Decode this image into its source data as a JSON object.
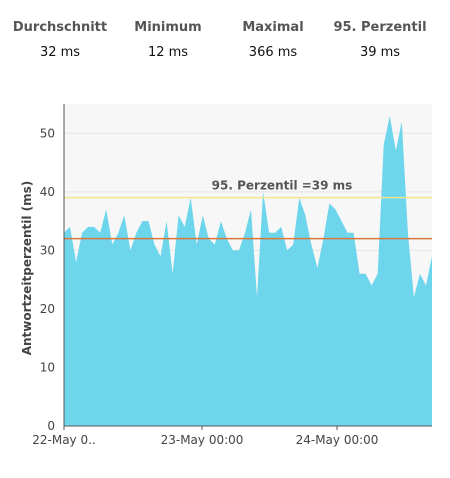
{
  "stats": [
    {
      "label": "Durchschnitt",
      "value": "32 ms"
    },
    {
      "label": "Minimum",
      "value": "12 ms"
    },
    {
      "label": "Maximal",
      "value": "366 ms"
    },
    {
      "label": "95. Perzentil",
      "value": "39 ms"
    }
  ],
  "chart_data": {
    "type": "area",
    "ylabel": "Antwortzeitperzentil (ms)",
    "ylim": [
      0,
      55
    ],
    "yticks": [
      0,
      10,
      20,
      30,
      40,
      50
    ],
    "xtick_labels": [
      "22-May 0..",
      "23-May 00:00",
      "24-May 00:00"
    ],
    "grid": true,
    "color": "#6dd5ec",
    "values": [
      33,
      34,
      28,
      33,
      34,
      34,
      33,
      37,
      31,
      33,
      36,
      30,
      33,
      35,
      35,
      31,
      29,
      35,
      26,
      36,
      34,
      39,
      31,
      36,
      32,
      31,
      35,
      32,
      30,
      30,
      33,
      37,
      22,
      40,
      33,
      33,
      34,
      30,
      31,
      39,
      36,
      31,
      27,
      32,
      38,
      37,
      35,
      33,
      33,
      26,
      26,
      24,
      26,
      48,
      53,
      47,
      52,
      33,
      22,
      26,
      24,
      29
    ],
    "reference_lines": [
      {
        "label": "95. Perzentil =39 ms",
        "value": 39,
        "color": "#f3e58f"
      },
      {
        "label": "",
        "value": 32,
        "color": "#d9773b"
      }
    ]
  }
}
